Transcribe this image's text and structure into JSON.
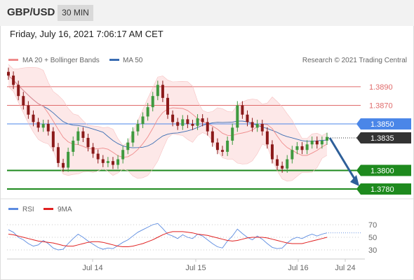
{
  "header": {
    "symbol": "GBP/USD",
    "interval": "30 MIN",
    "datetime": "Friday, July 16, 2021 7:06:17 AM CET"
  },
  "legend": {
    "ma20_label": "MA 20 + Bollinger Bands",
    "ma50_label": "MA 50",
    "copyright": "Research © 2021 Trading Central",
    "rsi_label": "RSI",
    "rsi_ma_label": "9MA"
  },
  "colors": {
    "ma20": "#ef8c8c",
    "bollinger_fill": "#fde4e4",
    "ma50": "#3a6db3",
    "candle_up": "#3f9a3f",
    "candle_down": "#8b1a1a",
    "resistance": "#e06b6b",
    "support": "#1e8a1e",
    "pivot": "#4a86e8",
    "current": "#333333",
    "rsi": "#5b8be0",
    "rsi_ma": "#e02020",
    "arrow": "#2e5f99"
  },
  "chart_data": [
    {
      "type": "candlestick",
      "title": "GBP/USD",
      "timeframe": "30 MIN",
      "x_ticks": [
        "Jul 14",
        "Jul 15",
        "Jul 16",
        "Jul 24"
      ],
      "ylim": [
        1.3774,
        1.3908
      ],
      "levels": [
        {
          "value": 1.389,
          "label": "1.3890",
          "kind": "resistance"
        },
        {
          "value": 1.387,
          "label": "1.3870",
          "kind": "resistance"
        },
        {
          "value": 1.385,
          "label": "1.3850",
          "kind": "pivot"
        },
        {
          "value": 1.3835,
          "label": "1.3835",
          "kind": "current"
        },
        {
          "value": 1.38,
          "label": "1.3800",
          "kind": "support"
        },
        {
          "value": 1.378,
          "label": "1.3780",
          "kind": "support"
        }
      ],
      "close_series": [
        1.3902,
        1.3892,
        1.388,
        1.387,
        1.386,
        1.3852,
        1.3846,
        1.385,
        1.3842,
        1.3825,
        1.3808,
        1.3803,
        1.382,
        1.3832,
        1.3842,
        1.3835,
        1.3825,
        1.3818,
        1.3812,
        1.3808,
        1.381,
        1.3806,
        1.3812,
        1.3822,
        1.383,
        1.3842,
        1.385,
        1.3858,
        1.3868,
        1.388,
        1.3892,
        1.3878,
        1.386,
        1.3852,
        1.3848,
        1.3855,
        1.385,
        1.3848,
        1.3856,
        1.3852,
        1.3842,
        1.383,
        1.3822,
        1.382,
        1.3832,
        1.3846,
        1.387,
        1.386,
        1.3852,
        1.3846,
        1.385,
        1.3842,
        1.3828,
        1.3812,
        1.3805,
        1.3802,
        1.3812,
        1.3822,
        1.3826,
        1.3822,
        1.3828,
        1.3832,
        1.3828,
        1.3832,
        1.3836
      ]
    },
    {
      "type": "line",
      "title": "RSI",
      "yticks": [
        30,
        50,
        70
      ],
      "ylim": [
        20,
        80
      ],
      "series": [
        {
          "name": "RSI",
          "values": [
            62,
            58,
            50,
            46,
            40,
            36,
            38,
            45,
            40,
            33,
            30,
            31,
            40,
            48,
            55,
            50,
            44,
            39,
            34,
            31,
            33,
            32,
            37,
            42,
            46,
            52,
            58,
            62,
            66,
            70,
            72,
            64,
            55,
            52,
            48,
            54,
            50,
            48,
            55,
            52,
            46,
            40,
            35,
            33,
            44,
            52,
            63,
            56,
            50,
            46,
            52,
            47,
            40,
            34,
            32,
            33,
            41,
            47,
            50,
            48,
            52,
            55,
            52,
            55,
            57
          ]
        },
        {
          "name": "9MA",
          "values": [
            55,
            54,
            52,
            50,
            48,
            46,
            44,
            43,
            42,
            41,
            39,
            37,
            36,
            36,
            38,
            40,
            42,
            43,
            43,
            42,
            40,
            38,
            36,
            35,
            35,
            36,
            38,
            40,
            43,
            46,
            50,
            54,
            57,
            59,
            59,
            59,
            58,
            57,
            55,
            54,
            53,
            51,
            49,
            47,
            45,
            44,
            45,
            47,
            49,
            50,
            50,
            50,
            49,
            47,
            45,
            43,
            41,
            40,
            40,
            40,
            42,
            44,
            46,
            48,
            50
          ]
        }
      ]
    }
  ]
}
